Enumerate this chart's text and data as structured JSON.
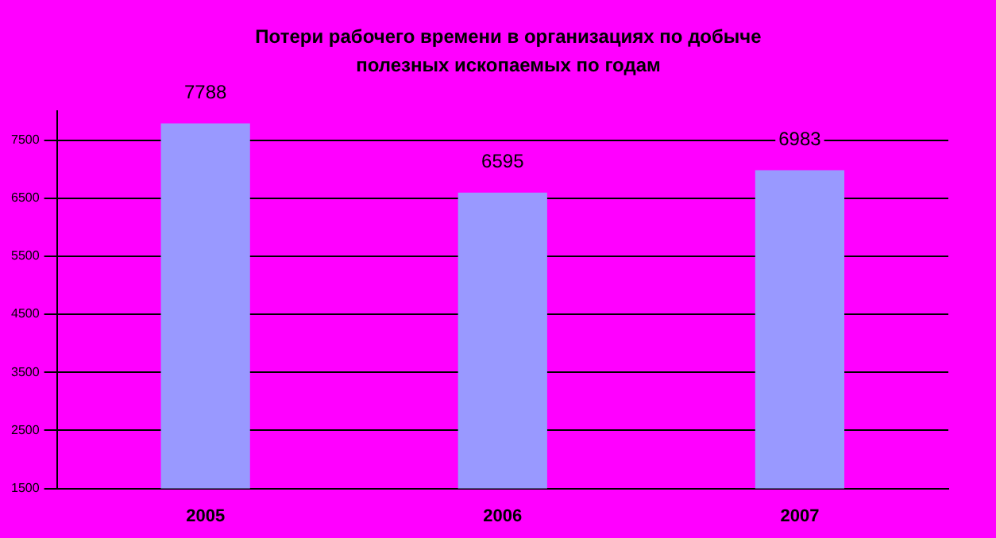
{
  "chart_data": {
    "type": "bar",
    "title": "Потери рабочего времени в организациях по добыче полезных ископаемых по годам",
    "categories": [
      "2005",
      "2006",
      "2007"
    ],
    "values": [
      7788,
      6595,
      6983
    ],
    "color": "#9999ff",
    "ylim": [
      1500,
      8000
    ],
    "yticks": [
      1500,
      2500,
      3500,
      4500,
      5500,
      6500,
      7500
    ],
    "grid": "y",
    "legend": false,
    "data_labels": true
  }
}
